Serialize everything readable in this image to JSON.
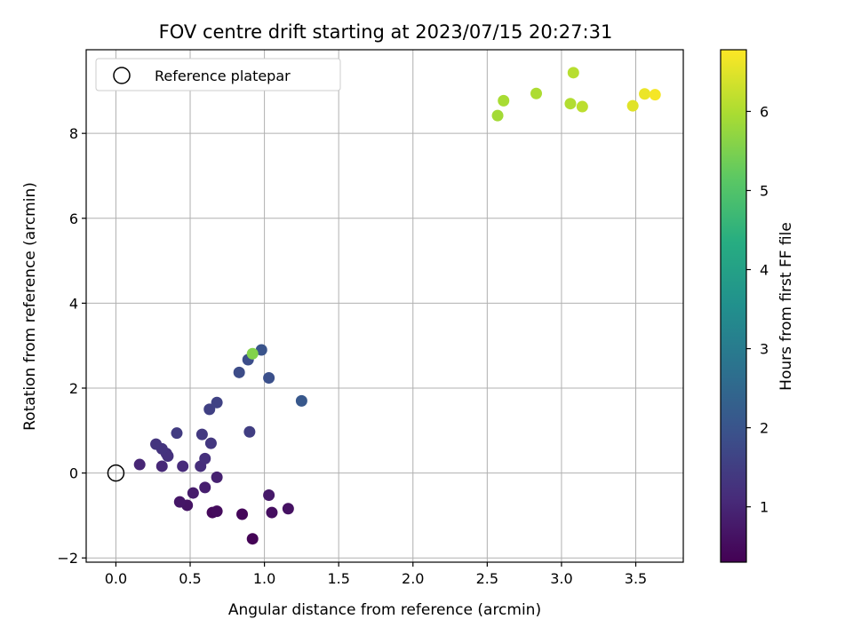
{
  "chart_data": {
    "type": "scatter",
    "title": "FOV centre drift starting at 2023/07/15 20:27:31",
    "xlabel": "Angular distance from reference (arcmin)",
    "ylabel": "Rotation from reference (arcmin)",
    "xlim": [
      -0.2,
      3.82
    ],
    "ylim": [
      -2.1,
      9.97
    ],
    "xticks": [
      "0.0",
      "0.5",
      "1.0",
      "1.5",
      "2.0",
      "2.5",
      "3.0",
      "3.5"
    ],
    "yticks": [
      "−2",
      "0",
      "2",
      "4",
      "6",
      "8"
    ],
    "grid": true,
    "legend": {
      "position": "top-left",
      "entries": [
        "Reference platepar"
      ]
    },
    "reference_point": {
      "x": 0.0,
      "y": 0.0
    },
    "colorbar": {
      "label": "Hours from first FF file",
      "range": [
        0.3,
        6.78
      ],
      "ticks": [
        "1",
        "2",
        "3",
        "4",
        "5",
        "6"
      ],
      "colormap": "viridis"
    },
    "points": [
      {
        "x": 0.92,
        "y": -1.55,
        "c": 0.35
      },
      {
        "x": 0.85,
        "y": -0.97,
        "c": 0.4
      },
      {
        "x": 0.65,
        "y": -0.93,
        "c": 0.45
      },
      {
        "x": 0.68,
        "y": -0.9,
        "c": 0.5
      },
      {
        "x": 1.05,
        "y": -0.93,
        "c": 0.55
      },
      {
        "x": 1.16,
        "y": -0.84,
        "c": 0.6
      },
      {
        "x": 0.48,
        "y": -0.76,
        "c": 0.65
      },
      {
        "x": 0.43,
        "y": -0.68,
        "c": 0.7
      },
      {
        "x": 1.03,
        "y": -0.52,
        "c": 0.75
      },
      {
        "x": 0.52,
        "y": -0.47,
        "c": 0.8
      },
      {
        "x": 0.6,
        "y": -0.34,
        "c": 0.85
      },
      {
        "x": 0.68,
        "y": -0.1,
        "c": 0.9
      },
      {
        "x": 0.16,
        "y": 0.2,
        "c": 1.0
      },
      {
        "x": 0.31,
        "y": 0.16,
        "c": 1.05
      },
      {
        "x": 0.45,
        "y": 0.16,
        "c": 1.1
      },
      {
        "x": 0.57,
        "y": 0.16,
        "c": 1.15
      },
      {
        "x": 0.6,
        "y": 0.34,
        "c": 1.2
      },
      {
        "x": 0.35,
        "y": 0.4,
        "c": 1.22
      },
      {
        "x": 0.34,
        "y": 0.46,
        "c": 1.25
      },
      {
        "x": 0.31,
        "y": 0.57,
        "c": 1.28
      },
      {
        "x": 0.27,
        "y": 0.68,
        "c": 1.3
      },
      {
        "x": 0.64,
        "y": 0.7,
        "c": 1.35
      },
      {
        "x": 0.58,
        "y": 0.91,
        "c": 1.4
      },
      {
        "x": 0.41,
        "y": 0.94,
        "c": 1.45
      },
      {
        "x": 0.9,
        "y": 0.97,
        "c": 1.5
      },
      {
        "x": 0.63,
        "y": 1.5,
        "c": 1.55
      },
      {
        "x": 0.68,
        "y": 1.66,
        "c": 1.6
      },
      {
        "x": 0.83,
        "y": 2.37,
        "c": 1.8
      },
      {
        "x": 0.89,
        "y": 2.67,
        "c": 1.85
      },
      {
        "x": 1.03,
        "y": 2.24,
        "c": 1.9
      },
      {
        "x": 0.98,
        "y": 2.9,
        "c": 2.0
      },
      {
        "x": 1.25,
        "y": 1.7,
        "c": 2.1
      },
      {
        "x": 0.92,
        "y": 2.81,
        "c": 5.55
      },
      {
        "x": 2.57,
        "y": 8.42,
        "c": 5.9
      },
      {
        "x": 2.61,
        "y": 8.77,
        "c": 5.95
      },
      {
        "x": 2.83,
        "y": 8.94,
        "c": 6.0
      },
      {
        "x": 3.06,
        "y": 8.7,
        "c": 6.05
      },
      {
        "x": 3.08,
        "y": 9.43,
        "c": 6.1
      },
      {
        "x": 3.14,
        "y": 8.63,
        "c": 6.15
      },
      {
        "x": 3.48,
        "y": 8.65,
        "c": 6.5
      },
      {
        "x": 3.56,
        "y": 8.93,
        "c": 6.6
      },
      {
        "x": 3.63,
        "y": 8.91,
        "c": 6.7
      }
    ]
  }
}
